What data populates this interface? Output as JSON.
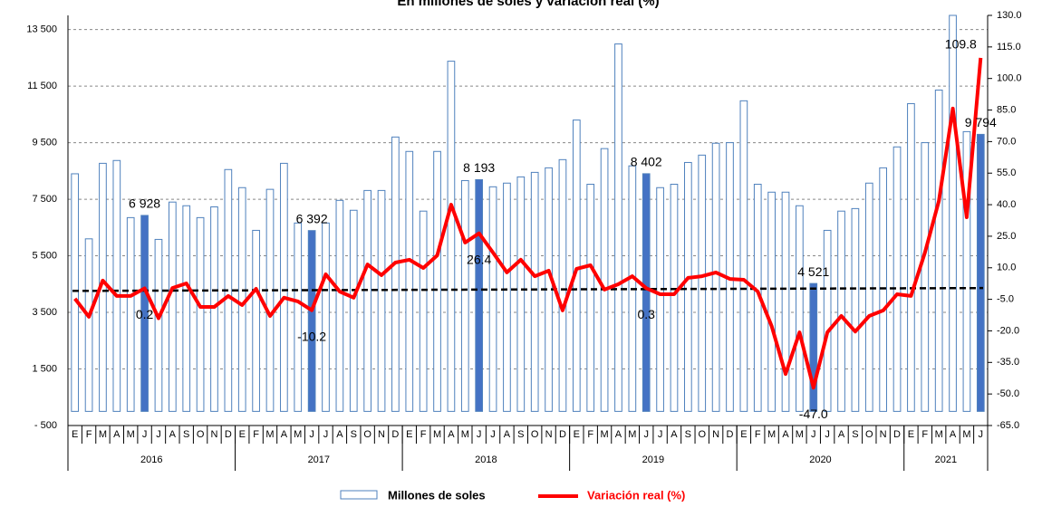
{
  "chart_data": {
    "type": "bar_line",
    "title": "En millones de soles y variación real (%)",
    "categories": [
      "E",
      "F",
      "M",
      "A",
      "M",
      "J",
      "J",
      "A",
      "S",
      "O",
      "N",
      "D",
      "E",
      "F",
      "M",
      "A",
      "M",
      "J",
      "J",
      "A",
      "S",
      "O",
      "N",
      "D",
      "E",
      "F",
      "M",
      "A",
      "M",
      "J",
      "J",
      "A",
      "S",
      "O",
      "N",
      "D",
      "E",
      "F",
      "M",
      "A",
      "M",
      "J",
      "J",
      "A",
      "S",
      "O",
      "N",
      "D",
      "E",
      "F",
      "M",
      "A",
      "M",
      "J",
      "J",
      "A",
      "S",
      "O",
      "N",
      "D",
      "E",
      "F",
      "M",
      "A",
      "M",
      "J"
    ],
    "years": [
      "2016",
      "2017",
      "2018",
      "2019",
      "2020",
      "2021"
    ],
    "series": [
      {
        "name": "Millones de soles",
        "color": "#4f81bd",
        "highlight_color": "#4472c4",
        "values": [
          8400,
          6100,
          8770,
          8870,
          6850,
          6928,
          6080,
          7400,
          7270,
          6850,
          7230,
          8550,
          7910,
          6400,
          7850,
          8770,
          6660,
          6392,
          6660,
          7460,
          7110,
          7810,
          7810,
          9700,
          9190,
          7080,
          9190,
          12380,
          8160,
          8193,
          7940,
          8070,
          8290,
          8450,
          8610,
          8900,
          10300,
          8030,
          9290,
          12990,
          8680,
          8402,
          7910,
          8030,
          8800,
          9060,
          9480,
          9500,
          10980,
          8030,
          7750,
          7750,
          7270,
          4521,
          6400,
          7080,
          7170,
          8070,
          8610,
          9350,
          10880,
          9500,
          11360,
          14000,
          9890,
          9794
        ],
        "highlight": [
          5,
          17,
          29,
          41,
          53,
          65
        ],
        "value_labels": {
          "5": "6 928",
          "17": "6 392",
          "29": "8 193",
          "41": "8 402",
          "53": "4 521",
          "65": "9 794"
        }
      },
      {
        "name": "Variación real (%)",
        "color": "#ff0000",
        "axis": "y2",
        "values": [
          -4.7,
          -13.3,
          3.9,
          -3.4,
          -3.4,
          0.2,
          -14,
          0.4,
          2.6,
          -8.6,
          -8.6,
          -3.4,
          -7.7,
          0,
          -12.9,
          -4.2,
          -6,
          -10.2,
          6.9,
          -1.3,
          -4.2,
          11.6,
          6.5,
          12.5,
          13.8,
          9.9,
          15.9,
          40,
          22,
          26.4,
          17.2,
          7.8,
          13.8,
          6,
          8.6,
          -10.3,
          9.5,
          11.2,
          -0.4,
          2.2,
          6,
          0.3,
          -2.6,
          -2.6,
          5.2,
          6,
          7.8,
          4.7,
          4.3,
          -1.3,
          -17.7,
          -40.5,
          -20.7,
          -47,
          -20.7,
          -12.9,
          -20.3,
          -12.9,
          -10.3,
          -2.6,
          -3.4,
          17.2,
          41.8,
          85.7,
          34,
          109.8
        ],
        "value_labels": {
          "5": "0.2",
          "17": "-10.2",
          "29": "26.4",
          "41": "0.3",
          "53": "-47.0",
          "65": "109.8"
        }
      }
    ],
    "trend_line": {
      "start": 4260,
      "end": 4360,
      "color": "#000000"
    },
    "ylim": [
      -500,
      14000
    ],
    "yticks": [
      {
        "value": -500,
        "label": "- 500"
      },
      {
        "value": 1500,
        "label": "1 500"
      },
      {
        "value": 3500,
        "label": "3 500"
      },
      {
        "value": 5500,
        "label": "5 500"
      },
      {
        "value": 7500,
        "label": "7 500"
      },
      {
        "value": 9500,
        "label": "9 500"
      },
      {
        "value": 11500,
        "label": "11 500"
      },
      {
        "value": 13500,
        "label": "13 500"
      }
    ],
    "y2lim": [
      -65,
      130
    ],
    "y2ticks": [
      {
        "value": -65,
        "label": "-65.0"
      },
      {
        "value": -50,
        "label": "-50.0"
      },
      {
        "value": -35,
        "label": "-35.0"
      },
      {
        "value": -20,
        "label": "-20.0"
      },
      {
        "value": -5,
        "label": "-5.0"
      },
      {
        "value": 10,
        "label": "10.0"
      },
      {
        "value": 25,
        "label": "25.0"
      },
      {
        "value": 40,
        "label": "40.0"
      },
      {
        "value": 55,
        "label": "55.0"
      },
      {
        "value": 70,
        "label": "70.0"
      },
      {
        "value": 85,
        "label": "85.0"
      },
      {
        "value": 100,
        "label": "100.0"
      },
      {
        "value": 115,
        "label": "115.0"
      },
      {
        "value": 130,
        "label": "130.0"
      }
    ],
    "grid": true
  }
}
